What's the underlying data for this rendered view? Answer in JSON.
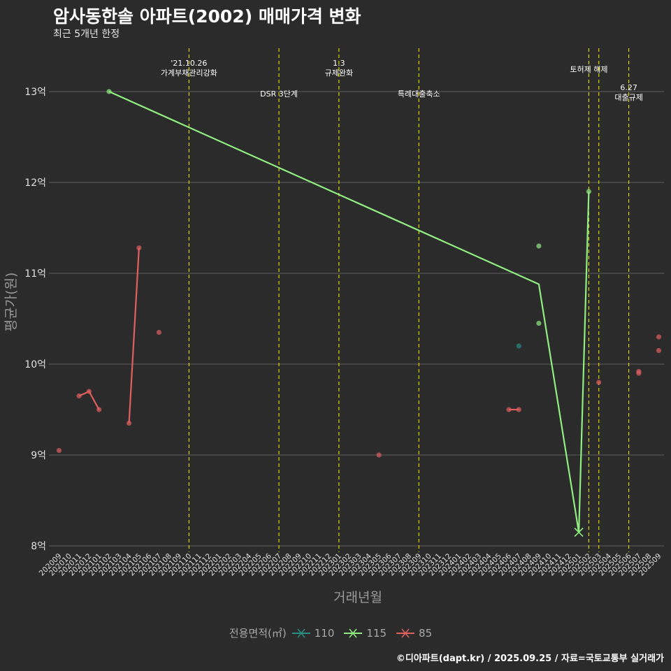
{
  "title": "암사동한솔 아파트(2002) 매매가격 변화",
  "subtitle": "최근 5개년 한정",
  "caption": "©디아파트(dapt.kr) / 2025.09.25 / 자료=국토교통부 실거래가",
  "colors": {
    "background": "#2b2b2b",
    "grid": "#5c5c5c",
    "event_line": "#d4d400",
    "axis_text": "#e0e0e0",
    "axis_title": "#9a9a9a",
    "series_110": "#2a8c82",
    "series_115": "#90ee80",
    "series_85": "#e06060"
  },
  "chart_data": {
    "type": "line",
    "xlabel": "거래년월",
    "ylabel": "평균가(원)",
    "legend_title": "전용면적(㎡)",
    "legend_position": "bottom",
    "grid": true,
    "ylim": [
      7.95,
      13.45
    ],
    "yticks": [
      8,
      9,
      10,
      11,
      12,
      13
    ],
    "ytick_labels": [
      "8억",
      "9억",
      "10억",
      "11억",
      "12억",
      "13억"
    ],
    "x": [
      "202009",
      "202010",
      "202011",
      "202012",
      "202101",
      "202102",
      "202103",
      "202104",
      "202105",
      "202106",
      "202107",
      "202108",
      "202109",
      "202110",
      "202111",
      "202112",
      "202201",
      "202202",
      "202203",
      "202204",
      "202205",
      "202206",
      "202207",
      "202208",
      "202209",
      "202210",
      "202211",
      "202212",
      "202301",
      "202302",
      "202303",
      "202304",
      "202305",
      "202306",
      "202307",
      "202308",
      "202309",
      "202310",
      "202311",
      "202312",
      "202401",
      "202402",
      "202403",
      "202404",
      "202405",
      "202406",
      "202407",
      "202408",
      "202409",
      "202410",
      "202411",
      "202412",
      "202501",
      "202502",
      "202503",
      "202504",
      "202505",
      "202506",
      "202507",
      "202508",
      "202509"
    ],
    "series": [
      {
        "name": "110",
        "color": "#2a8c82",
        "line": [],
        "points": [
          {
            "x": "202407",
            "y": 10.2
          }
        ]
      },
      {
        "name": "115",
        "color": "#90ee80",
        "line": [
          {
            "x": "202102",
            "y": 13.0
          },
          {
            "x": "202409",
            "y": 10.88
          },
          {
            "x": "202501",
            "y": 8.15
          },
          {
            "x": "202502",
            "y": 11.9
          }
        ],
        "points": [
          {
            "x": "202102",
            "y": 13.0
          },
          {
            "x": "202409",
            "y": 11.3
          },
          {
            "x": "202409",
            "y": 10.45
          },
          {
            "x": "202502",
            "y": 11.9
          }
        ],
        "cross": [
          {
            "x": "202501",
            "y": 8.15
          }
        ]
      },
      {
        "name": "85",
        "color": "#e06060",
        "line_segments": [
          [
            {
              "x": "202011",
              "y": 9.65
            },
            {
              "x": "202012",
              "y": 9.7
            },
            {
              "x": "202101",
              "y": 9.5
            }
          ],
          [
            {
              "x": "202104",
              "y": 9.35
            },
            {
              "x": "202105",
              "y": 11.28
            }
          ],
          [
            {
              "x": "202406",
              "y": 9.5
            },
            {
              "x": "202407",
              "y": 9.5
            }
          ]
        ],
        "points": [
          {
            "x": "202009",
            "y": 9.05
          },
          {
            "x": "202011",
            "y": 9.65
          },
          {
            "x": "202012",
            "y": 9.7
          },
          {
            "x": "202101",
            "y": 9.5
          },
          {
            "x": "202104",
            "y": 9.35
          },
          {
            "x": "202105",
            "y": 11.28
          },
          {
            "x": "202107",
            "y": 10.35
          },
          {
            "x": "202305",
            "y": 9.0
          },
          {
            "x": "202406",
            "y": 9.5
          },
          {
            "x": "202407",
            "y": 9.5
          },
          {
            "x": "202503",
            "y": 9.8
          },
          {
            "x": "202507",
            "y": 9.9
          },
          {
            "x": "202507",
            "y": 9.92
          },
          {
            "x": "202509",
            "y": 10.3
          },
          {
            "x": "202509",
            "y": 10.15
          }
        ]
      }
    ],
    "annotations": [
      {
        "x": "202110",
        "lines": [
          "'21.10.26",
          "가계부채관리강화"
        ],
        "level": "top"
      },
      {
        "x": "202207",
        "lines": [
          "DSR 3단계"
        ],
        "level": "low"
      },
      {
        "x": "202301",
        "lines": [
          "1.3",
          "규제완화"
        ],
        "level": "top"
      },
      {
        "x": "202309",
        "lines": [
          "특례대출축소"
        ],
        "level": "low"
      },
      {
        "x": "202502",
        "lines": [
          "토허제 해제"
        ],
        "level": "mid"
      },
      {
        "x": "202503",
        "lines": [],
        "level": "none"
      },
      {
        "x": "202506",
        "lines": [
          "6.27",
          "대출규제"
        ],
        "level": "third"
      }
    ]
  }
}
